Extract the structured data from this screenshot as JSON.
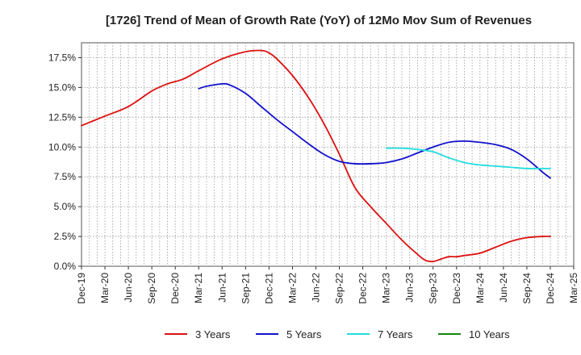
{
  "chart_data": {
    "type": "line",
    "title": "[1726]  Trend of Mean of Growth Rate (YoY) of 12Mo Mov Sum of Revenues",
    "xlabel": "",
    "ylabel": "",
    "ylim": [
      0,
      18.75
    ],
    "yticks": [
      0,
      2.5,
      5,
      7.5,
      10,
      12.5,
      15,
      17.5
    ],
    "ytick_labels": [
      "0.0%",
      "2.5%",
      "5.0%",
      "7.5%",
      "10.0%",
      "12.5%",
      "15.0%",
      "17.5%"
    ],
    "x_range_months": [
      0,
      63
    ],
    "x_ticks": [
      {
        "label": "Dec-19",
        "month": 0
      },
      {
        "label": "Mar-20",
        "month": 3
      },
      {
        "label": "Jun-20",
        "month": 6
      },
      {
        "label": "Sep-20",
        "month": 9
      },
      {
        "label": "Dec-20",
        "month": 12
      },
      {
        "label": "Mar-21",
        "month": 15
      },
      {
        "label": "Jun-21",
        "month": 18
      },
      {
        "label": "Sep-21",
        "month": 21
      },
      {
        "label": "Dec-21",
        "month": 24
      },
      {
        "label": "Mar-22",
        "month": 27
      },
      {
        "label": "Jun-22",
        "month": 30
      },
      {
        "label": "Sep-22",
        "month": 33
      },
      {
        "label": "Dec-22",
        "month": 36
      },
      {
        "label": "Mar-23",
        "month": 39
      },
      {
        "label": "Jun-23",
        "month": 42
      },
      {
        "label": "Sep-23",
        "month": 45
      },
      {
        "label": "Dec-23",
        "month": 48
      },
      {
        "label": "Mar-24",
        "month": 51
      },
      {
        "label": "Jun-24",
        "month": 54
      },
      {
        "label": "Sep-24",
        "month": 57
      },
      {
        "label": "Dec-24",
        "month": 60
      },
      {
        "label": "Mar-25",
        "month": 63
      }
    ],
    "grid": true,
    "legend_position": "bottom",
    "series": [
      {
        "name": "3 Years",
        "color": "#dd1111",
        "x": [
          0,
          3,
          6,
          9,
          11,
          13,
          15,
          18,
          21,
          23,
          24,
          25,
          27,
          29,
          31,
          33,
          35,
          37,
          39,
          41,
          43,
          44,
          45,
          46,
          47,
          48,
          49,
          51,
          53,
          55,
          57,
          59,
          60
        ],
        "values": [
          11.8,
          12.6,
          13.4,
          14.7,
          15.3,
          15.7,
          16.4,
          17.4,
          18.0,
          18.1,
          17.9,
          17.4,
          16.0,
          14.2,
          12.0,
          9.4,
          6.6,
          5.0,
          3.6,
          2.2,
          1.0,
          0.5,
          0.4,
          0.6,
          0.8,
          0.8,
          0.9,
          1.1,
          1.6,
          2.1,
          2.4,
          2.5,
          2.5
        ]
      },
      {
        "name": "5 Years",
        "color": "#1111cc",
        "x": [
          15,
          16,
          18,
          19,
          21,
          23,
          25,
          27,
          29,
          31,
          33,
          35,
          37,
          39,
          41,
          43,
          45,
          47,
          49,
          51,
          53,
          55,
          57,
          59,
          60
        ],
        "values": [
          14.9,
          15.1,
          15.3,
          15.2,
          14.5,
          13.4,
          12.3,
          11.3,
          10.3,
          9.4,
          8.8,
          8.6,
          8.6,
          8.7,
          9.0,
          9.5,
          10.0,
          10.4,
          10.5,
          10.4,
          10.2,
          9.8,
          9.0,
          7.9,
          7.4
        ]
      },
      {
        "name": "7 Years",
        "color": "#22dddd",
        "x": [
          39,
          41,
          43,
          45,
          47,
          49,
          51,
          53,
          55,
          57,
          59,
          60
        ],
        "values": [
          9.9,
          9.9,
          9.8,
          9.6,
          9.1,
          8.7,
          8.5,
          8.4,
          8.3,
          8.2,
          8.2,
          8.2
        ]
      },
      {
        "name": "10 Years",
        "color": "#118811",
        "x": [],
        "values": []
      }
    ]
  }
}
